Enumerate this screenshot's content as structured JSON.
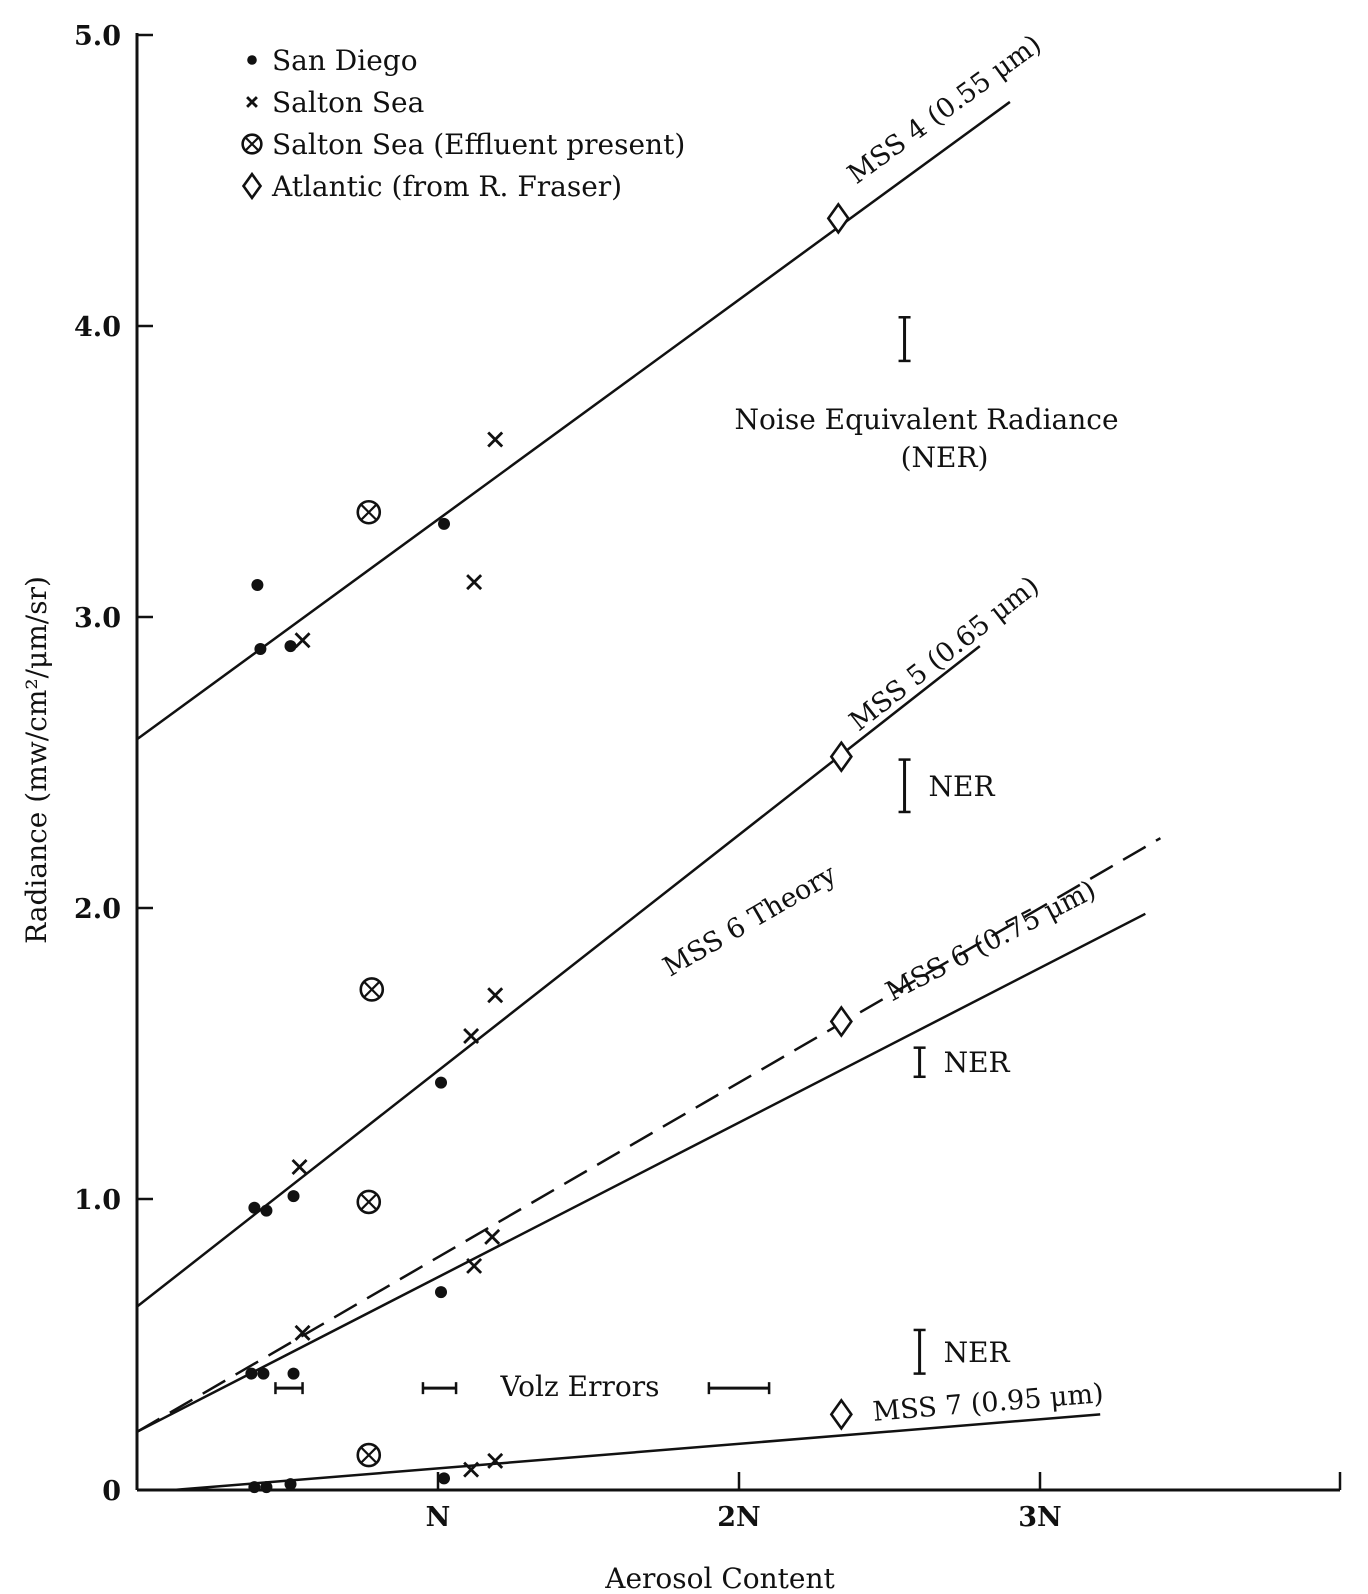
{
  "chart_data": {
    "type": "scatter",
    "xlabel": "Aerosol Content",
    "ylabel": "Radiance (mw/cm²/μm/sr)",
    "xlim": [
      0,
      4.0
    ],
    "ylim": [
      0,
      5.0
    ],
    "x_ticks": [
      {
        "value": 1,
        "label": "N"
      },
      {
        "value": 2,
        "label": "2N"
      },
      {
        "value": 3,
        "label": "3N"
      }
    ],
    "y_ticks": [
      {
        "value": 0,
        "label": "0"
      },
      {
        "value": 1,
        "label": "1.0"
      },
      {
        "value": 2,
        "label": "2.0"
      },
      {
        "value": 3,
        "label": "3.0"
      },
      {
        "value": 4,
        "label": "4.0"
      },
      {
        "value": 5,
        "label": "5.0"
      }
    ],
    "grid": false,
    "legend_position": "top-left",
    "legend": [
      {
        "marker": "dot",
        "label": "San Diego"
      },
      {
        "marker": "cross",
        "label": "Salton Sea"
      },
      {
        "marker": "circle-cross",
        "label": "Salton Sea (Effluent present)"
      },
      {
        "marker": "diamond",
        "label": "Atlantic (from R. Fraser)"
      }
    ],
    "series": [
      {
        "name": "San Diego",
        "marker": "dot",
        "points": [
          [
            0.4,
            3.11
          ],
          [
            0.41,
            2.89
          ],
          [
            0.51,
            2.9
          ],
          [
            1.02,
            3.32
          ],
          [
            0.39,
            0.97
          ],
          [
            0.43,
            0.96
          ],
          [
            0.52,
            1.01
          ],
          [
            1.01,
            1.4
          ],
          [
            0.38,
            0.4
          ],
          [
            0.42,
            0.4
          ],
          [
            0.52,
            0.4
          ],
          [
            1.01,
            0.68
          ],
          [
            0.39,
            0.01
          ],
          [
            0.43,
            0.01
          ],
          [
            0.51,
            0.02
          ],
          [
            1.02,
            0.04
          ]
        ]
      },
      {
        "name": "Salton Sea",
        "marker": "cross",
        "points": [
          [
            0.55,
            2.92
          ],
          [
            1.12,
            3.12
          ],
          [
            1.19,
            3.61
          ],
          [
            0.54,
            1.11
          ],
          [
            1.11,
            1.56
          ],
          [
            1.19,
            1.7
          ],
          [
            0.55,
            0.54
          ],
          [
            1.12,
            0.77
          ],
          [
            1.18,
            0.87
          ],
          [
            1.11,
            0.07
          ],
          [
            1.19,
            0.1
          ]
        ]
      },
      {
        "name": "Salton Sea (Effluent present)",
        "marker": "circle-cross",
        "points": [
          [
            0.77,
            3.36
          ],
          [
            0.78,
            1.72
          ],
          [
            0.77,
            0.99
          ],
          [
            0.77,
            0.12
          ]
        ]
      },
      {
        "name": "Atlantic (from R. Fraser)",
        "marker": "diamond",
        "points": [
          [
            2.33,
            4.37
          ],
          [
            2.34,
            2.52
          ],
          [
            2.34,
            1.61
          ],
          [
            2.34,
            0.26
          ]
        ]
      }
    ],
    "lines": [
      {
        "label": "MSS 4 (0.55 μm)",
        "style": "solid",
        "from": [
          0,
          2.58
        ],
        "to": [
          2.9,
          4.77
        ],
        "label_at": [
          2.7,
          4.72
        ]
      },
      {
        "label": "MSS 5 (0.65 μm)",
        "style": "solid",
        "from": [
          0,
          0.63
        ],
        "to": [
          2.8,
          2.9
        ],
        "label_at": [
          2.7,
          2.85
        ]
      },
      {
        "label": "MSS 6 Theory",
        "style": "dashed",
        "from": [
          0,
          0.2
        ],
        "to": [
          3.4,
          2.24
        ],
        "label_at": [
          2.05,
          1.93
        ]
      },
      {
        "label": "MSS 6 (0.75 μm)",
        "style": "solid",
        "from": [
          0,
          0.2
        ],
        "to": [
          3.35,
          1.98
        ],
        "label_at": [
          2.85,
          1.86
        ]
      },
      {
        "label": "MSS 7 (0.95 μm)",
        "style": "solid",
        "from": [
          0.12,
          0
        ],
        "to": [
          3.2,
          0.26
        ],
        "label_at": [
          2.83,
          0.27
        ]
      }
    ],
    "ner_bars": [
      {
        "x": 2.55,
        "y_low": 3.88,
        "y_high": 4.03,
        "label": "",
        "label_line1": "Noise Equivalent Radiance",
        "label_line2": "(NER)"
      },
      {
        "x": 2.55,
        "y_low": 2.33,
        "y_high": 2.51,
        "label": "NER"
      },
      {
        "x": 2.6,
        "y_low": 1.42,
        "y_high": 1.52,
        "label": "NER"
      },
      {
        "x": 2.6,
        "y_low": 0.4,
        "y_high": 0.55,
        "label": "NER"
      }
    ],
    "error_bars": [
      {
        "x_low": 0.46,
        "x_high": 0.55,
        "y": 0.35
      },
      {
        "x_low": 0.95,
        "x_high": 1.06,
        "y": 0.35
      },
      {
        "x_low": 1.9,
        "x_high": 2.1,
        "y": 0.35
      }
    ],
    "annotation": "Volz Errors"
  }
}
